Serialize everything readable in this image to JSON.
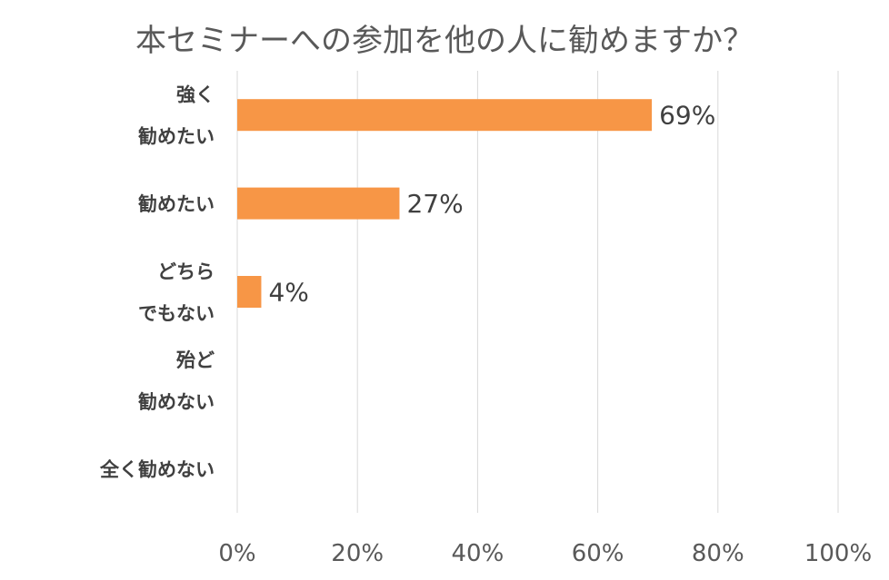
{
  "chart_data": {
    "type": "bar",
    "orientation": "horizontal",
    "title": "本セミナーへの参加を他の人に勧めますか？",
    "categories": [
      [
        "強く",
        "勧めたい"
      ],
      [
        "勧めたい"
      ],
      [
        "どちら",
        "でもない"
      ],
      [
        "殆ど",
        "勧めない"
      ],
      [
        "全く勧めない"
      ]
    ],
    "values": [
      69,
      27,
      4,
      0,
      0
    ],
    "data_labels": [
      "69%",
      "27%",
      "4%",
      "",
      ""
    ],
    "xlim": [
      0,
      100
    ],
    "xticks": [
      "0%",
      "20%",
      "40%",
      "60%",
      "80%",
      "100%"
    ],
    "xlabel": "",
    "ylabel": "",
    "grid": true,
    "legend": "none",
    "colors": {
      "bar": "#f79646",
      "grid": "#d9d9d9",
      "title": "#595959",
      "label": "#404040"
    }
  }
}
